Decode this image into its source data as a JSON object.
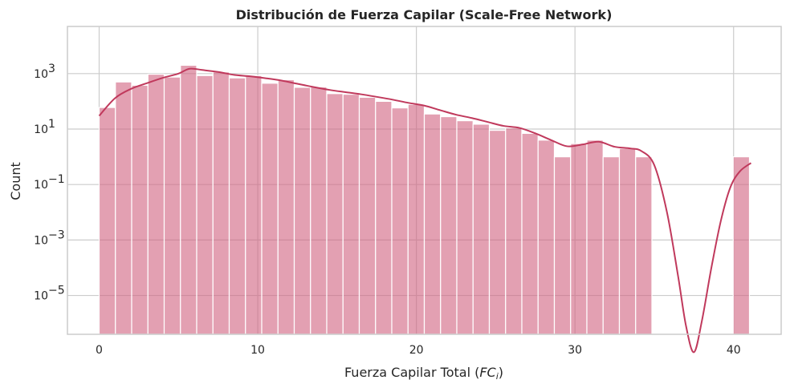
{
  "chart_data": {
    "type": "bar",
    "title": "Distribución de Fuerza Capilar (Scale-Free Network)",
    "xlabel": "Fuerza Capilar Total (FC_i)",
    "xlabel_main": "Fuerza Capilar Total (",
    "xlabel_var": "FC",
    "xlabel_sub": "i",
    "xlabel_close": ")",
    "ylabel": "Count",
    "y_scale": "log",
    "xlim": [
      -2,
      43
    ],
    "ylim_log10": [
      -6.4,
      4.7
    ],
    "x_ticks": [
      0,
      10,
      20,
      30,
      40
    ],
    "y_ticks": [
      {
        "base": "10",
        "exp": "3",
        "value": 1000
      },
      {
        "base": "10",
        "exp": "1",
        "value": 10
      },
      {
        "base": "10",
        "exp": "−1",
        "value": 0.1
      },
      {
        "base": "10",
        "exp": "−3",
        "value": 0.001
      },
      {
        "base": "10",
        "exp": "−5",
        "value": 1e-05
      }
    ],
    "grid": true,
    "bin_width": 1.025,
    "bin_start": 0,
    "bins": [
      {
        "x0": 0,
        "count": 60
      },
      {
        "x0": 1.025,
        "count": 500
      },
      {
        "x0": 2.05,
        "count": 380
      },
      {
        "x0": 3.075,
        "count": 950
      },
      {
        "x0": 4.1,
        "count": 750
      },
      {
        "x0": 5.125,
        "count": 2000
      },
      {
        "x0": 6.15,
        "count": 850
      },
      {
        "x0": 7.175,
        "count": 1150
      },
      {
        "x0": 8.2,
        "count": 700
      },
      {
        "x0": 9.225,
        "count": 850
      },
      {
        "x0": 10.25,
        "count": 450
      },
      {
        "x0": 11.275,
        "count": 600
      },
      {
        "x0": 12.3,
        "count": 320
      },
      {
        "x0": 13.325,
        "count": 330
      },
      {
        "x0": 14.35,
        "count": 190
      },
      {
        "x0": 15.375,
        "count": 180
      },
      {
        "x0": 16.4,
        "count": 140
      },
      {
        "x0": 17.425,
        "count": 100
      },
      {
        "x0": 18.45,
        "count": 58
      },
      {
        "x0": 19.475,
        "count": 78
      },
      {
        "x0": 20.5,
        "count": 35
      },
      {
        "x0": 21.525,
        "count": 28
      },
      {
        "x0": 22.55,
        "count": 20
      },
      {
        "x0": 23.575,
        "count": 15
      },
      {
        "x0": 24.6,
        "count": 9
      },
      {
        "x0": 25.625,
        "count": 11
      },
      {
        "x0": 26.65,
        "count": 7
      },
      {
        "x0": 27.675,
        "count": 4
      },
      {
        "x0": 28.7,
        "count": 1
      },
      {
        "x0": 29.725,
        "count": 3
      },
      {
        "x0": 30.75,
        "count": 4
      },
      {
        "x0": 31.775,
        "count": 1
      },
      {
        "x0": 32.8,
        "count": 2
      },
      {
        "x0": 33.825,
        "count": 1
      },
      {
        "x0": 39.975,
        "count": 1
      }
    ],
    "kde": {
      "x": [
        0,
        1,
        2,
        3,
        4,
        5,
        5.7,
        6.5,
        7.5,
        8.5,
        9.5,
        10.5,
        11.5,
        12.5,
        13.5,
        14.5,
        15.5,
        16.5,
        17.5,
        18.5,
        19.5,
        20.5,
        21.5,
        22.5,
        23.5,
        24.5,
        25.5,
        26.5,
        27.5,
        28.5,
        29.5,
        30.5,
        31.5,
        32.5,
        33.5,
        34.2,
        35,
        35.8,
        36.5,
        37.0,
        37.5,
        38.0,
        38.6,
        39.2,
        39.8,
        40.4,
        41.1
      ],
      "y": [
        30,
        130,
        280,
        450,
        700,
        1000,
        1500,
        1350,
        1150,
        900,
        800,
        680,
        560,
        430,
        330,
        260,
        215,
        180,
        145,
        115,
        88,
        70,
        48,
        33,
        25,
        18,
        13,
        11,
        7,
        4,
        2.4,
        2.8,
        3.5,
        2.3,
        2.0,
        1.6,
        0.5,
        0.01,
        5e-05,
        8e-07,
        9e-08,
        1.2e-06,
        0.0001,
        0.005,
        0.08,
        0.3,
        0.6
      ]
    },
    "colors": {
      "bar_fill": "#d0607e",
      "bar_opacity": 0.6,
      "bar_edge": "#ffffff",
      "kde_line": "#c0395c",
      "grid": "#cccccc",
      "spine": "#cccccc"
    }
  }
}
